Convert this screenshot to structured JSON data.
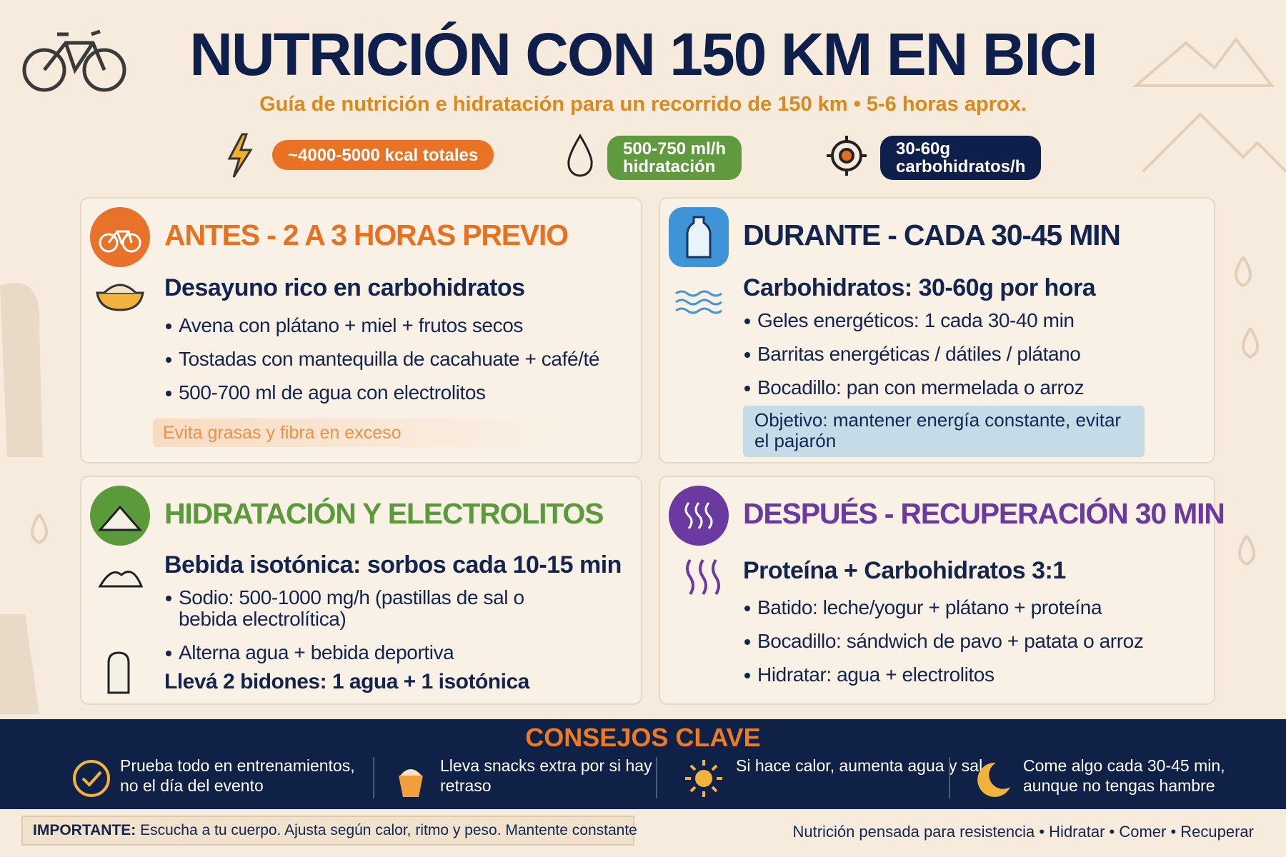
{
  "header": {
    "title": "NUTRICIÓN CON 150 KM EN BICI",
    "subtitle": "Guía de nutrición e hidratación para un recorrido de 150 km • 5-6 horas aprox."
  },
  "badges": [
    {
      "lines": [
        "~4000-5000 kcal totales"
      ]
    },
    {
      "lines": [
        "500-750 ml/h",
        "hidratación"
      ]
    },
    {
      "lines": [
        "30-60g",
        "carbohidratos/h"
      ]
    }
  ],
  "sections": [
    {
      "title": "ANTES - 2 A 3 HORAS PREVIO",
      "heading": "Desayuno rico en carbohidratos",
      "bullets": [
        "Avena con plátano + miel + frutos secos",
        "Tostadas con mantequilla de cacahuate + café/té",
        "500-700 ml de agua con electrolitos"
      ],
      "note": "Evita grasas y fibra en exceso"
    },
    {
      "title": "DURANTE - CADA 30-45 MIN",
      "heading": "Carbohidratos: 30-60g por hora",
      "bullets": [
        "Geles energéticos: 1 cada 30-40 min",
        "Barritas energéticas / dátiles / plátano",
        "Bocadillo: pan con mermelada o arroz"
      ],
      "note": "Objetivo: mantener energía constante, evitar el pajarón"
    },
    {
      "title": "HIDRATACIÓN Y ELECTROLITOS",
      "heading": "Bebida isotónica: sorbos cada 10-15 min",
      "bullets": [
        "Sodio: 500-1000 mg/h (pastillas de sal o bebida electrolítica)",
        "Alterna agua + bebida deportiva"
      ],
      "extra": "Llevá 2 bidones: 1 agua + 1 isotónica"
    },
    {
      "title": "DESPUÉS - RECUPERACIÓN 30 MIN",
      "heading": "Proteína + Carbohidratos 3:1",
      "bullets": [
        "Batido: leche/yogur + plátano + proteína",
        "Bocadillo: sándwich de pavo + patata o arroz",
        "Hidratar: agua + electrolitos"
      ]
    }
  ],
  "tips": {
    "title": "CONSEJOS CLAVE",
    "items": [
      "Prueba todo en entrenamientos, no el día del evento",
      "Lleva snacks extra por si hay retraso",
      "Si hace calor, aumenta agua y sal",
      "Come algo cada 30-45 min, aunque no tengas hambre"
    ]
  },
  "footer": {
    "important_label": "IMPORTANTE:",
    "important_text": "Escucha a tu cuerpo. Ajusta según calor, ritmo y peso. Mantente constante",
    "tagline": "Nutrición pensada para resistencia • Hidratar • Comer • Recuperar"
  }
}
